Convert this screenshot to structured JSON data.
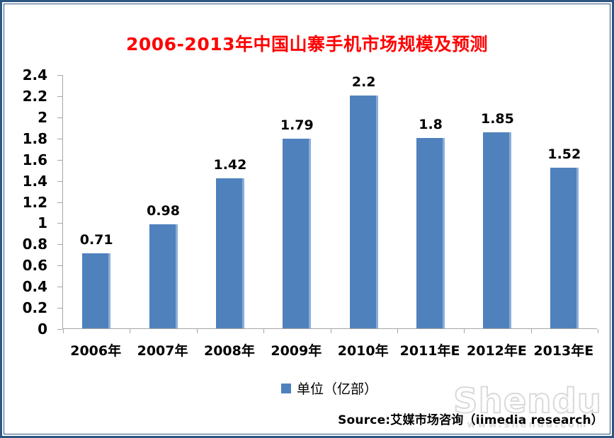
{
  "chart_data": {
    "type": "bar",
    "title": "2006-2013年中国山寨手机市场规模及预测",
    "title_color": "#FF0000",
    "categories": [
      "2006年",
      "2007年",
      "2008年",
      "2009年",
      "2010年",
      "2011年E",
      "2012年E",
      "2013年E"
    ],
    "values": [
      0.71,
      0.98,
      1.42,
      1.79,
      2.2,
      1.8,
      1.85,
      1.52
    ],
    "value_labels": [
      "0.71",
      "0.98",
      "1.42",
      "1.79",
      "2.2",
      "1.8",
      "1.85",
      "1.52"
    ],
    "xlabel": "",
    "ylabel": "",
    "ylim": [
      0,
      2.4
    ],
    "y_tick_labels": [
      "0",
      "0.2",
      "0.4",
      "0.6",
      "0.8",
      "1",
      "1.2",
      "1.4",
      "1.6",
      "1.8",
      "2",
      "2.2",
      "2.4"
    ],
    "grid": false,
    "bar_color": "#4F81BD",
    "bar_edge_highlight": "#8CADD6",
    "axis_color": "#A6A6A6",
    "legend_position": "bottom-center",
    "legend": [
      {
        "label": "单位（亿部）",
        "color": "#4F81BD"
      }
    ]
  },
  "footer": {
    "source": "Source:艾媒市场咨询（iimedia research）"
  },
  "watermark": {
    "text": "Shendu",
    "subtext": "www.shendu.com"
  }
}
